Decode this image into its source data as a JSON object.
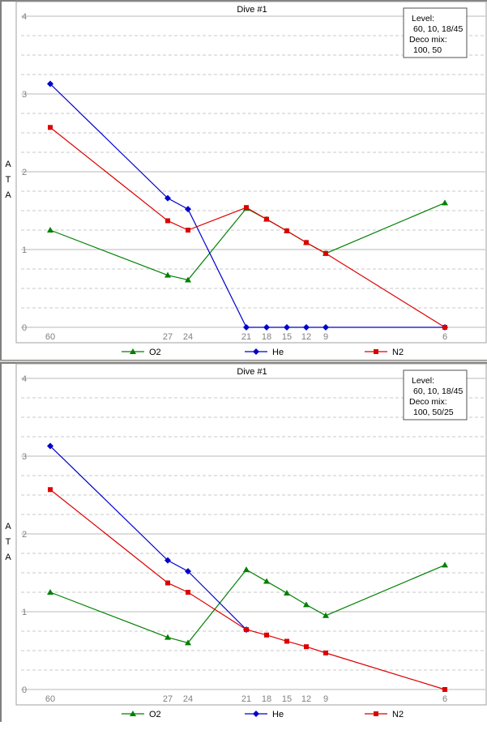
{
  "chart_data": [
    {
      "type": "line",
      "title": "Dive #1",
      "ylabel": "A T A",
      "x": [
        60,
        27,
        24,
        21,
        18,
        15,
        12,
        9,
        6
      ],
      "x_tick_labels": [
        "60",
        "27",
        "24",
        "21",
        "18",
        "15",
        "12",
        "9",
        "6"
      ],
      "ylim": [
        0,
        4
      ],
      "yticks": [
        0,
        1,
        2,
        3,
        4
      ],
      "grid": true,
      "legend_placement": "bottom",
      "info_box": {
        "line1": "Level:",
        "line2": "60, 10, 18/45",
        "line3": "Deco mix:",
        "line4": "100, 50"
      },
      "series": [
        {
          "name": "O2",
          "color": "#008000",
          "marker": "triangle",
          "points": [
            [
              60,
              1.25
            ],
            [
              27,
              0.67
            ],
            [
              24,
              0.61
            ],
            [
              21,
              1.53
            ],
            [
              18,
              1.39
            ],
            [
              15,
              1.24
            ],
            [
              12,
              1.09
            ],
            [
              9,
              0.95
            ],
            [
              6,
              1.6
            ]
          ]
        },
        {
          "name": "He",
          "color": "#0000cc",
          "marker": "diamond",
          "points": [
            [
              60,
              3.13
            ],
            [
              27,
              1.66
            ],
            [
              24,
              1.52
            ],
            [
              21,
              0
            ],
            [
              18,
              0
            ],
            [
              15,
              0
            ],
            [
              12,
              0
            ],
            [
              9,
              0
            ],
            [
              6,
              0
            ]
          ]
        },
        {
          "name": "N2",
          "color": "#dd0000",
          "marker": "square",
          "points": [
            [
              60,
              2.57
            ],
            [
              27,
              1.37
            ],
            [
              24,
              1.25
            ],
            [
              21,
              1.54
            ],
            [
              18,
              1.39
            ],
            [
              15,
              1.24
            ],
            [
              12,
              1.09
            ],
            [
              9,
              0.95
            ],
            [
              6,
              0
            ]
          ]
        }
      ]
    },
    {
      "type": "line",
      "title": "Dive #1",
      "ylabel": "A T A",
      "x": [
        60,
        27,
        24,
        21,
        18,
        15,
        12,
        9,
        6
      ],
      "x_tick_labels": [
        "60",
        "27",
        "24",
        "21",
        "18",
        "15",
        "12",
        "9",
        "6"
      ],
      "ylim": [
        0,
        4
      ],
      "yticks": [
        0,
        1,
        2,
        3,
        4
      ],
      "grid": true,
      "legend_placement": "bottom",
      "info_box": {
        "line1": "Level:",
        "line2": "60, 10, 18/45",
        "line3": "Deco mix:",
        "line4": "100, 50/25"
      },
      "series": [
        {
          "name": "O2",
          "color": "#008000",
          "marker": "triangle",
          "points": [
            [
              60,
              1.25
            ],
            [
              27,
              0.67
            ],
            [
              24,
              0.6
            ],
            [
              21,
              1.54
            ],
            [
              18,
              1.39
            ],
            [
              15,
              1.24
            ],
            [
              12,
              1.09
            ],
            [
              9,
              0.95
            ],
            [
              6,
              1.6
            ]
          ]
        },
        {
          "name": "He",
          "color": "#0000cc",
          "marker": "diamond",
          "points": [
            [
              60,
              3.13
            ],
            [
              27,
              1.66
            ],
            [
              24,
              1.52
            ],
            [
              21,
              0.77
            ]
          ]
        },
        {
          "name": "N2",
          "color": "#dd0000",
          "marker": "square",
          "points": [
            [
              60,
              2.57
            ],
            [
              27,
              1.37
            ],
            [
              24,
              1.25
            ],
            [
              21,
              0.77
            ],
            [
              18,
              0.7
            ],
            [
              15,
              0.62
            ],
            [
              12,
              0.55
            ],
            [
              9,
              0.47
            ],
            [
              6,
              0
            ]
          ]
        }
      ]
    }
  ]
}
